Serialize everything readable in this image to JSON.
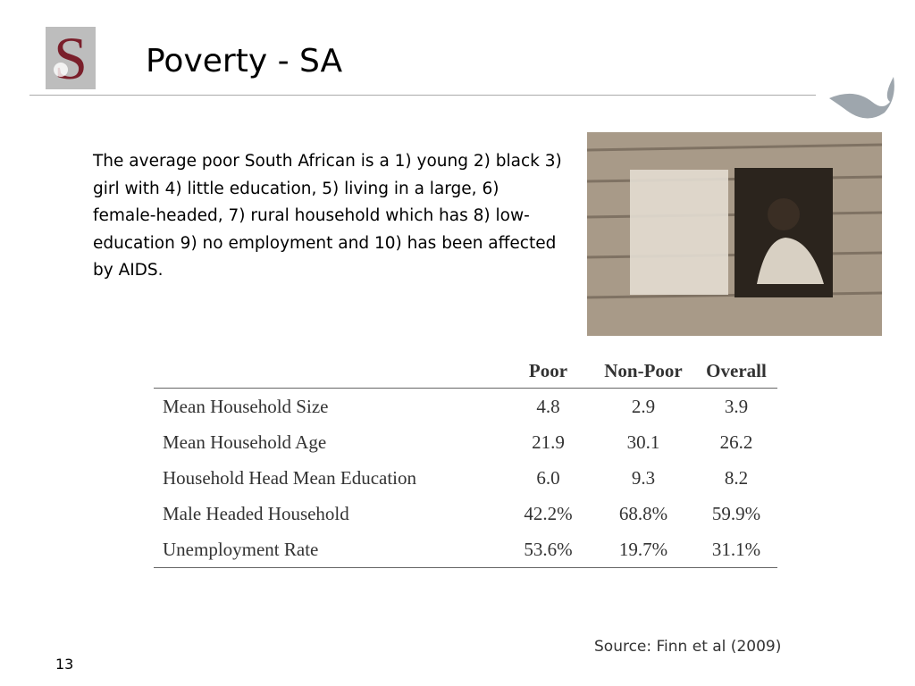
{
  "header": {
    "title": "Poverty - SA"
  },
  "body": {
    "text": "The average poor South African is a 1) young 2) black 3) girl with 4) little education, 5) living in a large, 6) female-headed, 7) rural household which has 8) low-education 9) no employment and 10) has been affected by AIDS."
  },
  "table": {
    "columns": [
      "",
      "Poor",
      "Non-Poor",
      "Overall"
    ],
    "rows": [
      [
        "Mean Household Size",
        "4.8",
        "2.9",
        "3.9"
      ],
      [
        "Mean Household Age",
        "21.9",
        "30.1",
        "26.2"
      ],
      [
        "Household Head Mean Education",
        "6.0",
        "9.3",
        "8.2"
      ],
      [
        "Male Headed Household",
        "42.2%",
        "68.8%",
        "59.9%"
      ],
      [
        "Unemployment Rate",
        "53.6%",
        "19.7%",
        "31.1%"
      ]
    ]
  },
  "source": "Source: Finn et al (2009)",
  "footer": {
    "page_number": "13"
  }
}
